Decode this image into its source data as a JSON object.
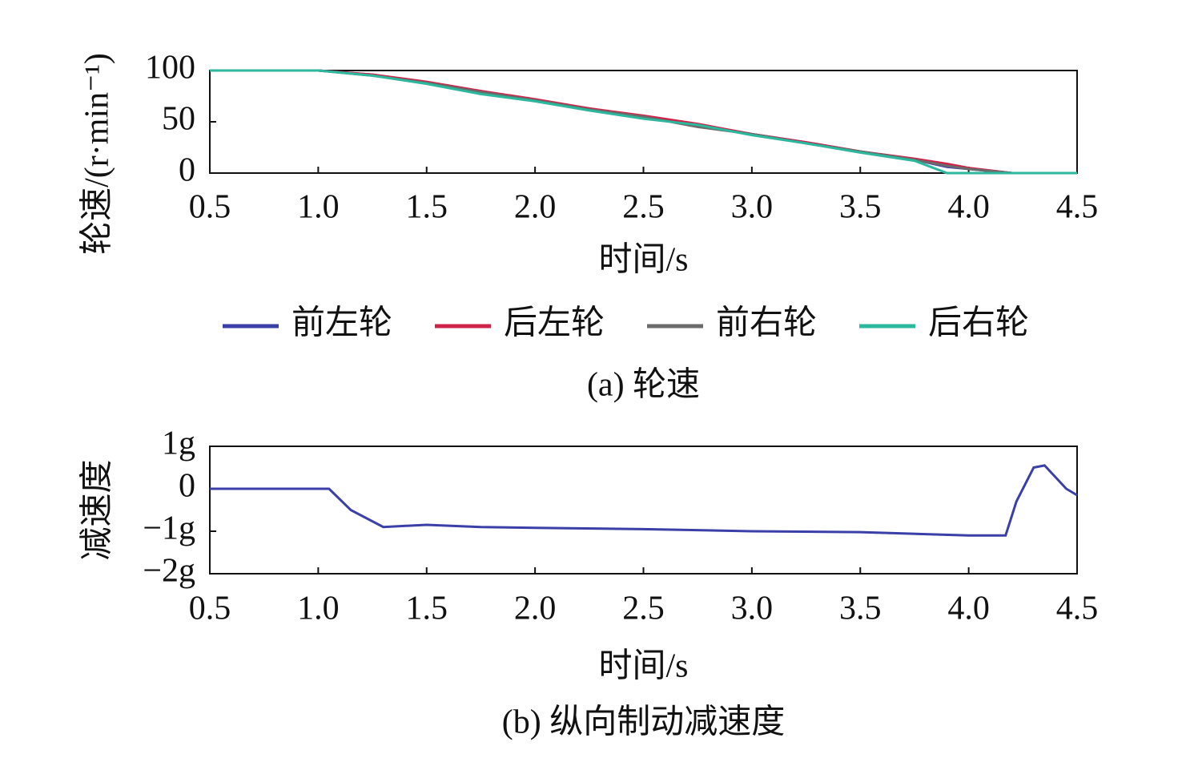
{
  "chart_data": [
    {
      "type": "line",
      "caption": "(a) 轮速",
      "xlabel": "时间/s",
      "ylabel": "轮速/(r·min⁻¹)",
      "x": [
        0.5,
        0.75,
        1.0,
        1.25,
        1.5,
        1.75,
        2.0,
        2.25,
        2.5,
        2.75,
        3.0,
        3.25,
        3.5,
        3.75,
        3.9,
        4.0,
        4.2,
        4.5
      ],
      "series": [
        {
          "name": "前左轮",
          "color": "#3b3fa8",
          "values": [
            100,
            100,
            100,
            96,
            88,
            80,
            71,
            63,
            55,
            47,
            38,
            30,
            21,
            13,
            6,
            4,
            0,
            0
          ]
        },
        {
          "name": "后左轮",
          "color": "#d0234a",
          "values": [
            100,
            100,
            100,
            96,
            89,
            80,
            72,
            63,
            56,
            48,
            38,
            30,
            21,
            14,
            9,
            5,
            0,
            0
          ]
        },
        {
          "name": "前右轮",
          "color": "#6b6b6b",
          "values": [
            100,
            100,
            100,
            95,
            88,
            79,
            71,
            62,
            55,
            45,
            38,
            29,
            21,
            13,
            7,
            4,
            0,
            0
          ]
        },
        {
          "name": "后右轮",
          "color": "#2bb89c",
          "values": [
            100,
            100,
            100,
            95,
            87,
            77,
            70,
            61,
            53,
            47,
            37,
            29,
            20,
            12,
            0,
            0,
            0,
            0
          ]
        }
      ],
      "xlim": [
        0.5,
        4.5
      ],
      "ylim": [
        0,
        100
      ],
      "xticks": [
        0.5,
        {
          "value": 1,
          "label": "1.0"
        },
        1.5,
        {
          "value": 2,
          "label": "2.0"
        },
        2.5,
        {
          "value": 3,
          "label": "3.0"
        },
        3.5,
        {
          "value": 4,
          "label": "4.0"
        },
        4.5
      ],
      "yticks": [
        0,
        50,
        100
      ],
      "legend": "bottom"
    },
    {
      "type": "line",
      "caption": "(b) 纵向制动减速度",
      "xlabel": "时间/s",
      "ylabel": "减速度",
      "x": [
        0.5,
        1.05,
        1.15,
        1.3,
        1.5,
        1.75,
        2.0,
        2.5,
        3.0,
        3.5,
        4.0,
        4.17,
        4.22,
        4.3,
        4.35,
        4.45,
        4.5
      ],
      "series": [
        {
          "color": "#3b3fa8",
          "values": [
            0,
            0,
            -0.5,
            -0.9,
            -0.85,
            -0.9,
            -0.92,
            -0.95,
            -1.0,
            -1.02,
            -1.1,
            -1.1,
            -0.3,
            0.5,
            0.55,
            0,
            -0.15
          ]
        }
      ],
      "xlim": [
        0.5,
        4.5
      ],
      "ylim": [
        -2,
        1
      ],
      "xticks": [
        0.5,
        {
          "value": 1,
          "label": "1.0"
        },
        1.5,
        {
          "value": 2,
          "label": "2.0"
        },
        2.5,
        {
          "value": 3,
          "label": "3.0"
        },
        3.5,
        {
          "value": 4,
          "label": "4.0"
        },
        4.5
      ],
      "yticks": [
        {
          "value": -2,
          "label": "−2g"
        },
        {
          "value": -1,
          "label": "−1g"
        },
        0,
        {
          "value": 1,
          "label": "1g"
        }
      ]
    }
  ]
}
